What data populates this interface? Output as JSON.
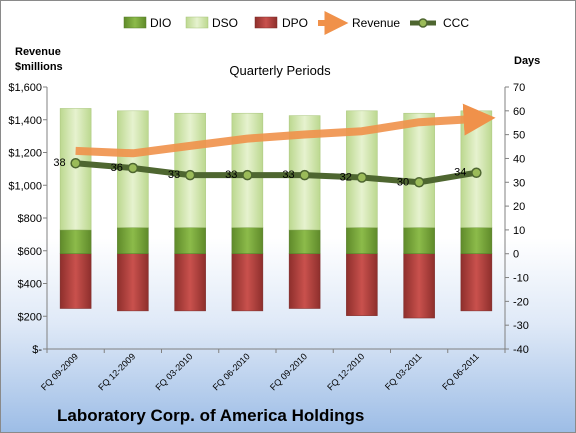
{
  "chart_data": {
    "type": "bar",
    "title": "Quarterly Periods",
    "company": "Laboratory Corp. of America Holdings",
    "left_axis": {
      "title_line1": "Revenue",
      "title_line2": "$millions",
      "ylim": [
        0,
        1600
      ],
      "ticks": [
        "$-",
        "$200",
        "$400",
        "$600",
        "$800",
        "$1,000",
        "$1,200",
        "$1,400",
        "$1,600"
      ]
    },
    "right_axis": {
      "title": "Days",
      "ylim": [
        -40,
        70
      ],
      "ticks": [
        "-40",
        "-30",
        "-20",
        "-10",
        "0",
        "10",
        "20",
        "30",
        "40",
        "50",
        "60",
        "70"
      ]
    },
    "categories": [
      "FQ 09-2009",
      "FQ 12-2009",
      "FQ 03-2010",
      "FQ 06-2010",
      "FQ 09-2010",
      "FQ 12-2010",
      "FQ 03-2011",
      "FQ 06-2011"
    ],
    "legend_position": "top",
    "legend": [
      "DIO",
      "DSO",
      "DPO",
      "Revenue",
      "CCC"
    ],
    "colors": {
      "DIO": "#7aa43a",
      "DSO": "#d5e8b0",
      "DPO": "#c0504d",
      "Revenue": "#f0914a",
      "CCC": "#5f7a3a"
    },
    "series": [
      {
        "name": "DIO",
        "axis": "right",
        "values": [
          10,
          11,
          11,
          11,
          10,
          11,
          11,
          11
        ]
      },
      {
        "name": "DSO",
        "axis": "right",
        "values": [
          51,
          49,
          48,
          48,
          48,
          49,
          48,
          49
        ]
      },
      {
        "name": "DPO",
        "axis": "right",
        "values": [
          -23,
          -24,
          -24,
          -24,
          -23,
          -26,
          -27,
          -24
        ]
      },
      {
        "name": "Revenue",
        "axis": "left",
        "values": [
          1210,
          1195,
          1240,
          1285,
          1310,
          1330,
          1385,
          1405
        ]
      },
      {
        "name": "CCC",
        "axis": "right",
        "values": [
          38,
          36,
          33,
          33,
          33,
          32,
          30,
          34
        ]
      }
    ],
    "ccc_labels": [
      "38",
      "36",
      "33",
      "33",
      "33",
      "32",
      "30",
      "34"
    ],
    "grid": false
  }
}
